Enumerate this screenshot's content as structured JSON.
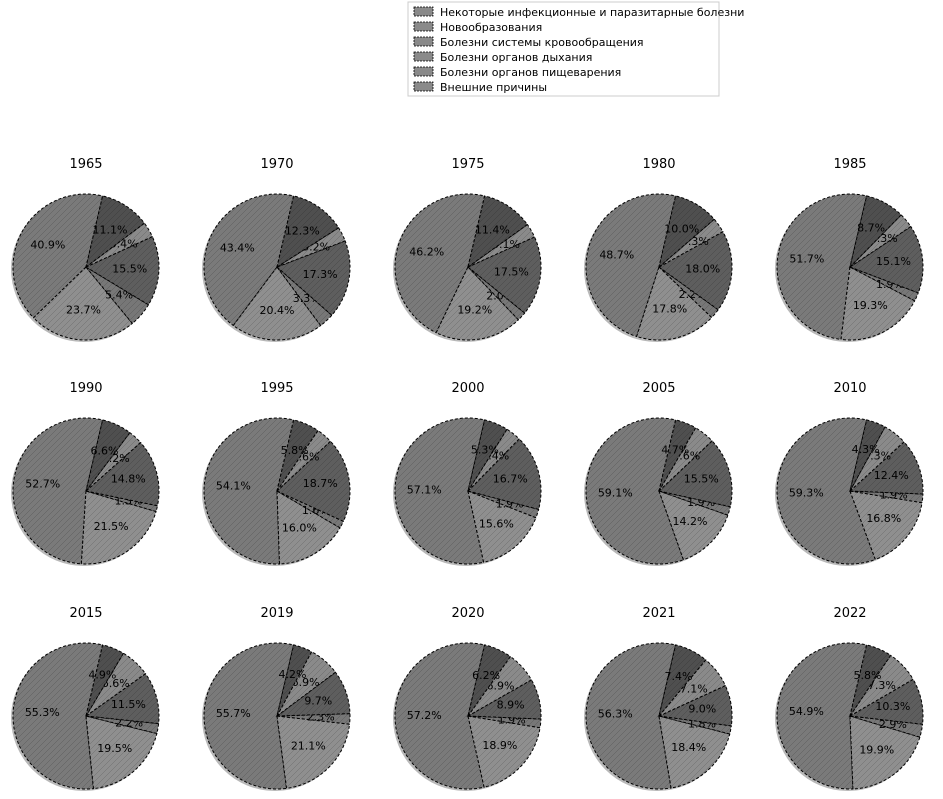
{
  "legend": {
    "items": [
      "Некоторые инфекционные и паразитарные болезни",
      "Новообразования",
      "Болезни системы кровообращения",
      "Болезни органов дыхания",
      "Болезни органов пищеварения",
      "Внешние причины"
    ]
  },
  "colors": {
    "infectious": "#777777",
    "neoplasms": "#8f8f8f",
    "circulatory": "#7a7a7a",
    "respiratory": "#4f4f4f",
    "digestive": "#8a8a8a",
    "external": "#5e5e5e",
    "legend_swatch": "#8a8a8a",
    "edge": "#000000"
  },
  "chart_data": {
    "type": "pie",
    "title": "",
    "series_names": [
      "Некоторые инфекционные и паразитарные болезни",
      "Новообразования",
      "Болезни системы кровообращения",
      "Болезни органов дыхания",
      "Болезни органов пищеварения",
      "Внешние причины"
    ],
    "value_order": [
      "circulatory",
      "neoplasms",
      "infectious",
      "external",
      "digestive",
      "respiratory"
    ],
    "pies": [
      {
        "year": "1965",
        "values": [
          40.9,
          23.7,
          5.4,
          15.5,
          3.4,
          11.1
        ]
      },
      {
        "year": "1970",
        "values": [
          43.4,
          20.4,
          3.3,
          17.3,
          3.2,
          12.3
        ]
      },
      {
        "year": "1975",
        "values": [
          46.2,
          19.2,
          2.0,
          17.5,
          3.1,
          11.4
        ]
      },
      {
        "year": "1980",
        "values": [
          48.7,
          17.8,
          2.2,
          18.0,
          3.3,
          10.0
        ]
      },
      {
        "year": "1985",
        "values": [
          51.7,
          19.3,
          1.9,
          15.1,
          3.3,
          8.7
        ]
      },
      {
        "year": "1990",
        "values": [
          52.7,
          21.5,
          1.3,
          14.8,
          3.2,
          6.6
        ]
      },
      {
        "year": "1995",
        "values": [
          54.1,
          16.0,
          1.6,
          18.7,
          3.6,
          5.8
        ]
      },
      {
        "year": "2000",
        "values": [
          57.1,
          15.6,
          1.9,
          16.7,
          3.4,
          5.3
        ]
      },
      {
        "year": "2005",
        "values": [
          59.1,
          14.2,
          1.9,
          15.5,
          4.6,
          4.7
        ]
      },
      {
        "year": "2010",
        "values": [
          59.3,
          16.8,
          1.9,
          12.4,
          5.3,
          4.3
        ]
      },
      {
        "year": "2015",
        "values": [
          55.3,
          19.5,
          2.2,
          11.5,
          6.6,
          4.9
        ]
      },
      {
        "year": "2019",
        "values": [
          55.7,
          21.1,
          2.3,
          9.7,
          6.9,
          4.2
        ]
      },
      {
        "year": "2020",
        "values": [
          57.2,
          18.9,
          1.9,
          8.9,
          6.9,
          6.2
        ]
      },
      {
        "year": "2021",
        "values": [
          56.3,
          18.4,
          1.8,
          9.0,
          7.1,
          7.4
        ]
      },
      {
        "year": "2022",
        "values": [
          54.9,
          19.9,
          2.9,
          10.3,
          7.3,
          5.8
        ]
      }
    ],
    "label_format": "0.0%",
    "grid": false,
    "legend_position": "top-center"
  }
}
